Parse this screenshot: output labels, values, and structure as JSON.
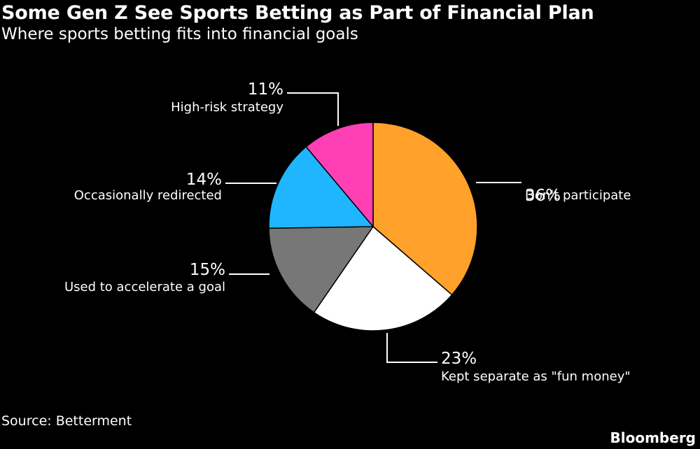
{
  "header": {
    "title": "Some Gen Z See Sports Betting as Part of Financial Plan",
    "subtitle": "Where sports betting fits into financial goals"
  },
  "footer": {
    "source": "Source: Betterment",
    "brand": "Bloomberg"
  },
  "chart_data": {
    "type": "pie",
    "title": "Some Gen Z See Sports Betting as Part of Financial Plan",
    "subtitle": "Where sports betting fits into financial goals",
    "slices": [
      {
        "label": "Don't participate",
        "value": 36,
        "value_label": "36%",
        "color": "#FFA12B"
      },
      {
        "label": "Kept separate as \"fun money\"",
        "value": 23,
        "value_label": "23%",
        "color": "#FFFFFF"
      },
      {
        "label": "Used to accelerate a goal",
        "value": 15,
        "value_label": "15%",
        "color": "#777777"
      },
      {
        "label": "Occasionally redirected",
        "value": 14,
        "value_label": "14%",
        "color": "#1FB6FF"
      },
      {
        "label": "High-risk strategy",
        "value": 11,
        "value_label": "11%",
        "color": "#FF40B4"
      }
    ],
    "start_angle": "12 o'clock",
    "direction": "clockwise"
  }
}
